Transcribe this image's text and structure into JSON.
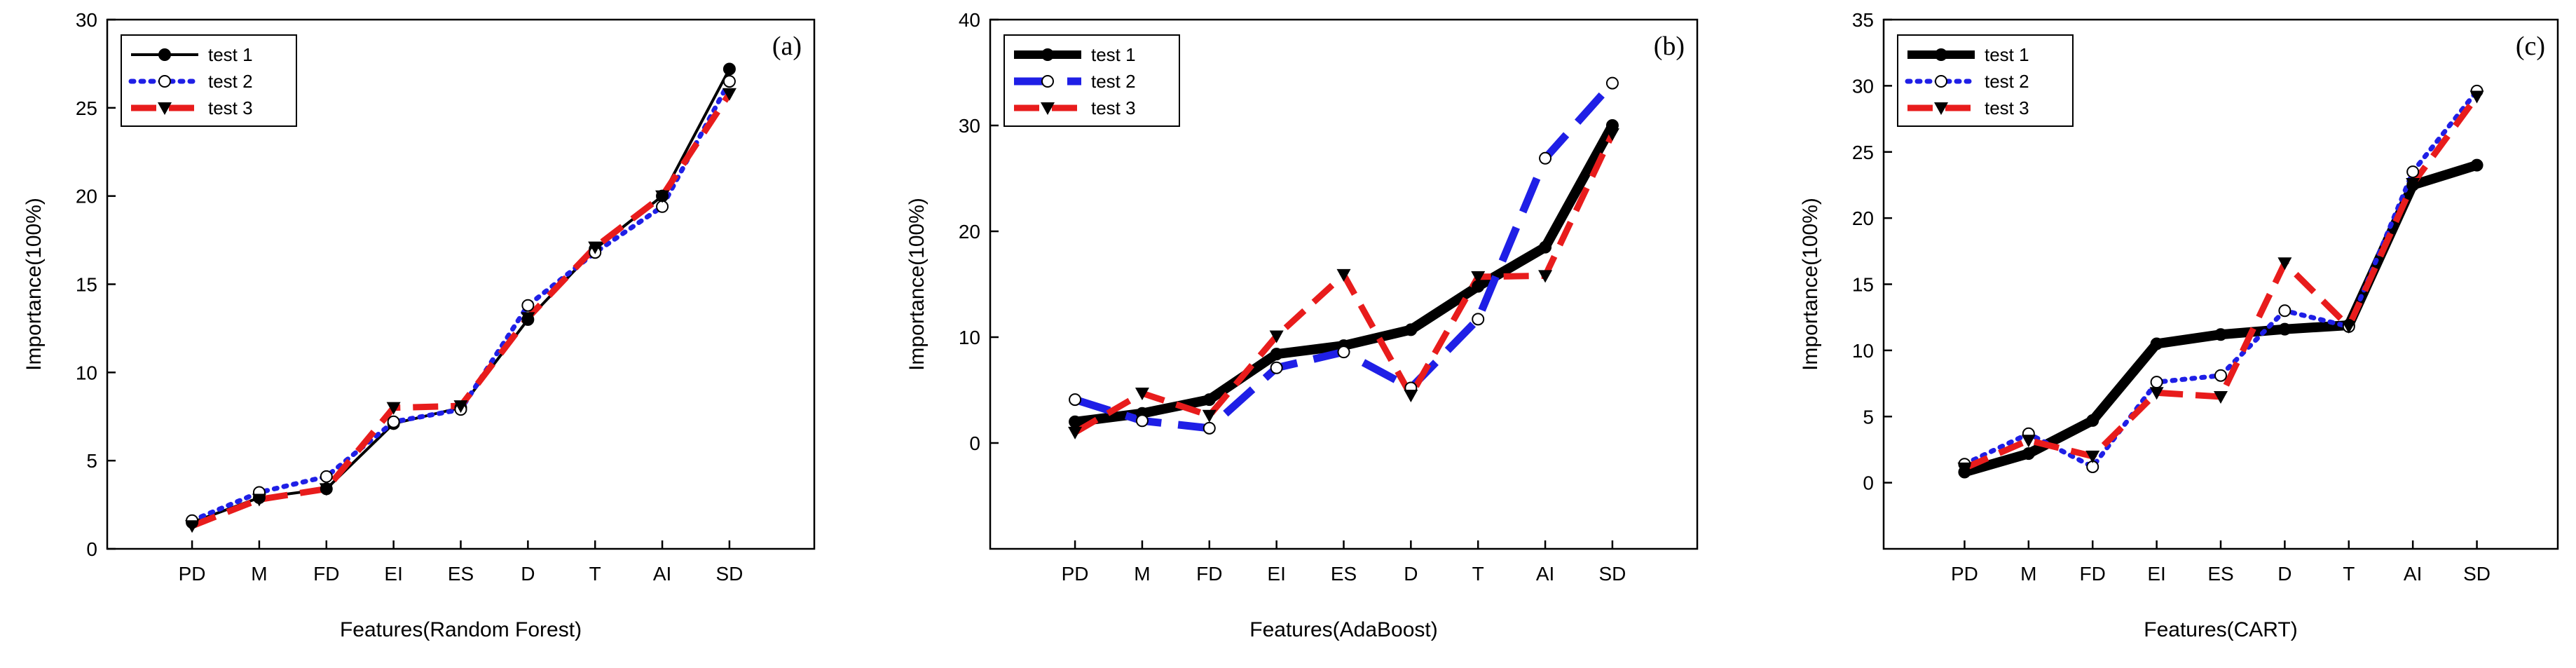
{
  "chart_data": [
    {
      "type": "line",
      "panel_label": "(a)",
      "xlabel": "Features(Random Forest)",
      "ylabel": "Importance(100%)",
      "categories": [
        "PD",
        "M",
        "FD",
        "EI",
        "ES",
        "D",
        "T",
        "AI",
        "SD"
      ],
      "ylim": [
        0,
        30
      ],
      "yticks": [
        "0",
        "5",
        "10",
        "15",
        "20",
        "25",
        "30"
      ],
      "legend_position": "top-left",
      "series": [
        {
          "name": "test 1",
          "color": "#000000",
          "style": "solid",
          "marker": "filled-circle",
          "values": [
            1.5,
            2.9,
            3.4,
            7.1,
            8.0,
            13.0,
            17.0,
            20.0,
            27.2
          ]
        },
        {
          "name": "test 2",
          "color": "#1f1fe6",
          "style": "dotted",
          "marker": "open-circle",
          "values": [
            1.6,
            3.2,
            4.1,
            7.2,
            7.9,
            13.8,
            16.8,
            19.4,
            26.5
          ]
        },
        {
          "name": "test 3",
          "color": "#e81c1c",
          "style": "dashed",
          "marker": "filled-triangle",
          "values": [
            1.3,
            2.8,
            3.4,
            8.0,
            8.1,
            13.1,
            17.1,
            20.0,
            25.8
          ]
        }
      ]
    },
    {
      "type": "line",
      "panel_label": "(b)",
      "xlabel": "Features(AdaBoost)",
      "ylabel": "Importance(100%)",
      "categories": [
        "PD",
        "M",
        "FD",
        "EI",
        "ES",
        "D",
        "T",
        "AI",
        "SD"
      ],
      "ylim": [
        -10,
        40
      ],
      "yticks": [
        "0",
        "10",
        "20",
        "30",
        "40"
      ],
      "legend_position": "top-left",
      "series": [
        {
          "name": "test 1",
          "color": "#000000",
          "style": "solid-thick",
          "marker": "filled-circle",
          "values": [
            2.0,
            2.8,
            4.1,
            8.4,
            9.2,
            10.7,
            14.8,
            18.5,
            30.0
          ]
        },
        {
          "name": "test 2",
          "color": "#1f1fe6",
          "style": "long-dash",
          "marker": "open-circle",
          "values": [
            4.1,
            2.1,
            1.4,
            7.1,
            8.6,
            5.2,
            11.7,
            26.9,
            34.0
          ]
        },
        {
          "name": "test 3",
          "color": "#e81c1c",
          "style": "dashed",
          "marker": "filled-triangle",
          "values": [
            1.0,
            4.7,
            2.6,
            10.1,
            15.9,
            4.5,
            15.7,
            15.8,
            29.2
          ]
        }
      ]
    },
    {
      "type": "line",
      "panel_label": "(c)",
      "xlabel": "Features(CART)",
      "ylabel": "Importance(100%)",
      "categories": [
        "PD",
        "M",
        "FD",
        "EI",
        "ES",
        "D",
        "T",
        "AI",
        "SD"
      ],
      "ylim": [
        -5,
        35
      ],
      "yticks": [
        "0",
        "5",
        "10",
        "15",
        "20",
        "25",
        "30",
        "35"
      ],
      "legend_position": "top-left",
      "series": [
        {
          "name": "test 1",
          "color": "#000000",
          "style": "solid-thick",
          "marker": "filled-circle",
          "values": [
            0.8,
            2.2,
            4.7,
            10.5,
            11.2,
            11.6,
            11.9,
            22.5,
            24.0
          ]
        },
        {
          "name": "test 2",
          "color": "#1f1fe6",
          "style": "dotted",
          "marker": "open-circle",
          "values": [
            1.4,
            3.7,
            1.2,
            7.6,
            8.1,
            13.0,
            11.8,
            23.5,
            29.6
          ]
        },
        {
          "name": "test 3",
          "color": "#e81c1c",
          "style": "dashed",
          "marker": "filled-triangle",
          "values": [
            1.1,
            3.2,
            2.0,
            6.8,
            6.5,
            16.6,
            11.8,
            22.6,
            29.2
          ]
        }
      ]
    }
  ]
}
